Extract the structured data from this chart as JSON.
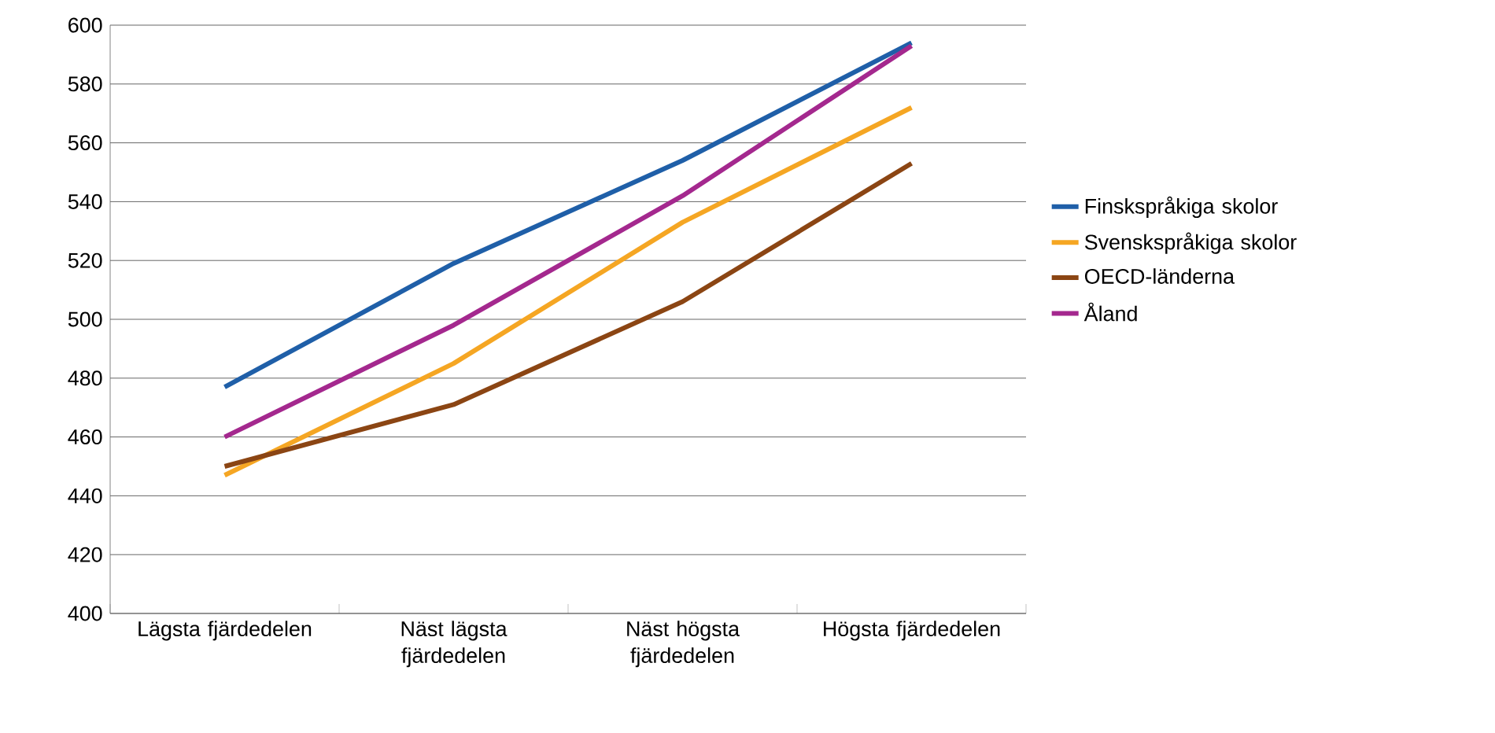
{
  "chart_data": {
    "type": "line",
    "categories": [
      "Lägsta fjärdedelen",
      "Näst lägsta fjärdedelen",
      "Näst högsta fjärdedelen",
      "Högsta fjärdedelen"
    ],
    "series": [
      {
        "name": "Finskspråkiga skolor",
        "color": "#1f5fa8",
        "values": [
          477,
          519,
          554,
          594
        ]
      },
      {
        "name": "Svenskspråkiga skolor",
        "color": "#f5a623",
        "values": [
          447,
          485,
          533,
          572
        ]
      },
      {
        "name": "OECD-länderna",
        "color": "#8b4513",
        "values": [
          450,
          471,
          506,
          553
        ]
      },
      {
        "name": "Åland",
        "color": "#a4288e",
        "values": [
          460,
          498,
          542,
          593
        ]
      }
    ],
    "ylim": [
      400,
      600
    ],
    "yticks": [
      400,
      420,
      440,
      460,
      480,
      500,
      520,
      540,
      560,
      580,
      600
    ],
    "grid": "y",
    "legend": "right",
    "marker": "none",
    "line_style": "solid"
  }
}
